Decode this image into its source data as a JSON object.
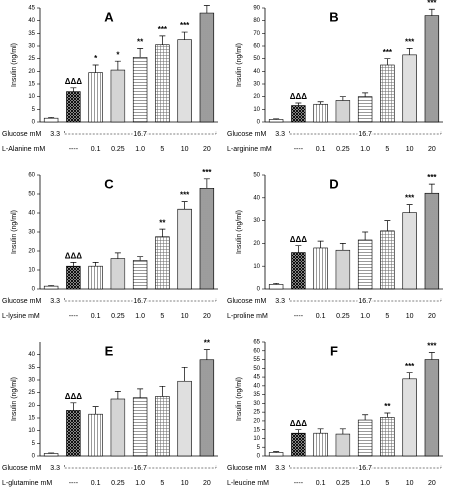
{
  "chart_data": [
    {
      "type": "bar",
      "title": "A",
      "ylabel": "Insulin (ng/ml)",
      "glucose_label": "Glucose mM",
      "glucose_levels": [
        "3.3",
        "16.7"
      ],
      "treatment_label": "L-Alanine mM",
      "categories": [
        null,
        "----",
        "0.1",
        "0.25",
        "1.0",
        "5",
        "10",
        "20"
      ],
      "values": [
        1.5,
        12,
        19.5,
        20.5,
        25.5,
        30.5,
        32.5,
        43
      ],
      "errors": [
        0.3,
        1.5,
        3,
        3.5,
        3.5,
        3.5,
        3,
        3
      ],
      "annotations": [
        null,
        "ΔΔΔ",
        "*",
        "*",
        "**",
        "***",
        "***",
        "***"
      ],
      "ylim": [
        0,
        45
      ],
      "yticks": [
        0,
        5,
        10,
        15,
        20,
        25,
        30,
        35,
        40,
        45
      ]
    },
    {
      "type": "bar",
      "title": "B",
      "ylabel": "Insulin (ng/ml)",
      "glucose_label": "Glucose mM",
      "glucose_levels": [
        "3.3",
        "16.7"
      ],
      "treatment_label": "L-arginine mM",
      "categories": [
        null,
        "----",
        "0.1",
        "0.25",
        "1.0",
        "5",
        "10",
        "20"
      ],
      "values": [
        2,
        13,
        14,
        17,
        20,
        45,
        53,
        84
      ],
      "errors": [
        0.5,
        2,
        2,
        3,
        3,
        5,
        5,
        5
      ],
      "annotations": [
        null,
        "ΔΔΔ",
        null,
        null,
        null,
        "***",
        "***",
        "***"
      ],
      "ylim": [
        0,
        90
      ],
      "yticks": [
        0,
        10,
        20,
        30,
        40,
        50,
        60,
        70,
        80,
        90
      ]
    },
    {
      "type": "bar",
      "title": "C",
      "ylabel": "Insulin (ng/ml)",
      "glucose_label": "Glucose mM",
      "glucose_levels": [
        "3.3",
        "16.7"
      ],
      "treatment_label": "L-lysine mM",
      "categories": [
        null,
        "----",
        "0.1",
        "0.25",
        "1.0",
        "5",
        "10",
        "20"
      ],
      "values": [
        1.5,
        12,
        12,
        16,
        15,
        27.5,
        42,
        53
      ],
      "errors": [
        0.3,
        2,
        2,
        3,
        2,
        4,
        4,
        5
      ],
      "annotations": [
        null,
        "ΔΔΔ",
        null,
        null,
        null,
        "**",
        "***",
        "***"
      ],
      "ylim": [
        0,
        60
      ],
      "yticks": [
        0,
        10,
        20,
        30,
        40,
        50,
        60
      ]
    },
    {
      "type": "bar",
      "title": "D",
      "ylabel": "Insulin (ng/ml)",
      "glucose_label": "Glucose mM",
      "glucose_levels": [
        "3.3",
        "16.7"
      ],
      "treatment_label": "L-proline mM",
      "categories": [
        null,
        "----",
        "0.1",
        "0.25",
        "1.0",
        "5",
        "10",
        "20"
      ],
      "values": [
        2,
        16,
        18,
        17,
        21.5,
        25.5,
        33.5,
        42
      ],
      "errors": [
        0.5,
        3,
        3,
        3,
        3.5,
        4.5,
        3.5,
        4
      ],
      "annotations": [
        null,
        "ΔΔΔ",
        null,
        null,
        null,
        null,
        "***",
        "***"
      ],
      "ylim": [
        0,
        50
      ],
      "yticks": [
        0,
        10,
        20,
        30,
        40,
        50
      ]
    },
    {
      "type": "bar",
      "title": "E",
      "ylabel": "Insulin (ng/ml)",
      "glucose_label": "Glucose mM",
      "glucose_levels": [
        "3.3",
        "16.7"
      ],
      "treatment_label": "L-glutamine mM",
      "categories": [
        null,
        "----",
        "0.1",
        "0.25",
        "1.0",
        "5",
        "10",
        "20"
      ],
      "values": [
        1,
        18,
        16.5,
        22.5,
        23,
        23.5,
        29.5,
        38
      ],
      "errors": [
        0.2,
        3,
        3,
        3,
        3.5,
        4,
        5.5,
        4
      ],
      "annotations": [
        null,
        "ΔΔΔ",
        null,
        null,
        null,
        null,
        null,
        "**"
      ],
      "ylim": [
        0,
        45
      ],
      "yticks": [
        0,
        5,
        10,
        15,
        20,
        25,
        30,
        35,
        40
      ]
    },
    {
      "type": "bar",
      "title": "F",
      "ylabel": "Insulin (ng/ml)",
      "glucose_label": "Glucose mM",
      "glucose_levels": [
        "3.3",
        "16.7"
      ],
      "treatment_label": "L-leucine mM",
      "categories": [
        null,
        "----",
        "0.1",
        "0.25",
        "1.0",
        "5",
        "10",
        "20"
      ],
      "values": [
        2,
        13,
        13,
        12.5,
        20.5,
        22,
        44,
        55
      ],
      "errors": [
        0.5,
        2,
        2.5,
        3,
        3,
        2.5,
        3.5,
        4
      ],
      "annotations": [
        null,
        "ΔΔΔ",
        null,
        null,
        null,
        "**",
        "***",
        "***"
      ],
      "ylim": [
        0,
        65
      ],
      "yticks": [
        0,
        5,
        10,
        15,
        20,
        25,
        30,
        35,
        40,
        45,
        50,
        55,
        60,
        65
      ]
    }
  ]
}
